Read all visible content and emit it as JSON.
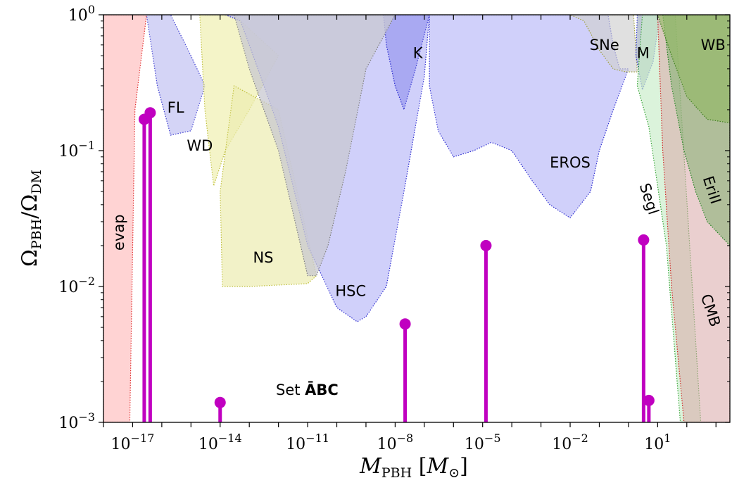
{
  "chart_data": {
    "type": "scatter",
    "x_scale": "log",
    "y_scale": "log",
    "x_range": [
      1e-18,
      3000.0
    ],
    "y_range": [
      0.001,
      1
    ],
    "xlabel": "M_PBH [M_⊙]",
    "ylabel": "Ω_PBH/Ω_DM",
    "x_ticks": [
      {
        "value": 1e-17,
        "base": "10",
        "exp": "−17"
      },
      {
        "value": 1e-14,
        "base": "10",
        "exp": "−14"
      },
      {
        "value": 1e-11,
        "base": "10",
        "exp": "−11"
      },
      {
        "value": 1e-08,
        "base": "10",
        "exp": "−8"
      },
      {
        "value": 1e-05,
        "base": "10",
        "exp": "−5"
      },
      {
        "value": 0.01,
        "base": "10",
        "exp": "−2"
      },
      {
        "value": 10,
        "base": "10",
        "exp": "1"
      }
    ],
    "y_ticks": [
      {
        "value": 0.001,
        "base": "10",
        "exp": "−3"
      },
      {
        "value": 0.01,
        "base": "10",
        "exp": "−2"
      },
      {
        "value": 0.1,
        "base": "10",
        "exp": "−1"
      },
      {
        "value": 1,
        "base": "10",
        "exp": "0"
      }
    ],
    "constraints": [
      {
        "name": "evap",
        "color": "#ffbcbc",
        "line": "#e03030",
        "opacity": 0.65,
        "boundary": [
          [
            1e-18,
            1
          ],
          [
            3e-17,
            1
          ],
          [
            1.2e-17,
            0.2
          ],
          [
            8e-18,
            0.001
          ],
          [
            1e-18,
            0.001
          ]
        ]
      },
      {
        "name": "FL",
        "color": "#b8b8f0",
        "line": "#4040d0",
        "opacity": 0.6,
        "boundary": [
          [
            3e-17,
            1
          ],
          [
            2e-16,
            1
          ],
          [
            1e-15,
            0.5
          ],
          [
            3e-15,
            0.3
          ],
          [
            1e-15,
            0.14
          ],
          [
            2e-16,
            0.13
          ],
          [
            7e-17,
            0.3
          ],
          [
            3e-17,
            1
          ]
        ]
      },
      {
        "name": "WD",
        "color": "#f0f0b0",
        "line": "#c0c040",
        "opacity": 0.7,
        "boundary": [
          [
            2e-15,
            1
          ],
          [
            3e-14,
            1
          ],
          [
            1e-12,
            0.5
          ],
          [
            1e-13,
            0.2
          ],
          [
            1.5e-14,
            0.1
          ],
          [
            6e-15,
            0.055
          ],
          [
            3e-15,
            0.2
          ],
          [
            2e-15,
            1
          ]
        ]
      },
      {
        "name": "NS",
        "color": "#ededb0",
        "line": "#c0c040",
        "opacity": 0.7,
        "boundary": [
          [
            1e-14,
            0.05
          ],
          [
            3e-14,
            0.3
          ],
          [
            1e-12,
            0.2
          ],
          [
            2e-11,
            0.012
          ],
          [
            1e-11,
            0.0105
          ],
          [
            1e-13,
            0.01
          ],
          [
            1.2e-14,
            0.01
          ],
          [
            1e-14,
            0.05
          ]
        ]
      },
      {
        "name": "HSC",
        "color": "#c0c0f8",
        "line": "#3030d0",
        "opacity": 0.75,
        "boundary": [
          [
            1.5e-14,
            1
          ],
          [
            5e-14,
            0.9
          ],
          [
            1e-13,
            0.6
          ],
          [
            1e-12,
            0.15
          ],
          [
            1e-11,
            0.02
          ],
          [
            1e-10,
            0.007
          ],
          [
            5e-10,
            0.0055
          ],
          [
            1e-09,
            0.006
          ],
          [
            5e-09,
            0.01
          ],
          [
            2e-08,
            0.05
          ],
          [
            1e-07,
            0.35
          ],
          [
            1.5e-07,
            1
          ],
          [
            1.5e-14,
            1
          ]
        ]
      },
      {
        "name": "K",
        "color": "#9090ec",
        "line": "#3030d0",
        "opacity": 0.6,
        "boundary": [
          [
            1e-08,
            1
          ],
          [
            1.5e-07,
            1
          ],
          [
            5e-08,
            0.4
          ],
          [
            2e-08,
            0.2
          ],
          [
            1e-08,
            0.3
          ],
          [
            5e-09,
            0.6
          ],
          [
            4e-09,
            1
          ],
          [
            1e-08,
            1
          ]
        ]
      },
      {
        "name": "EROS",
        "color": "#c0c0f8",
        "line": "#3030d0",
        "opacity": 0.75,
        "boundary": [
          [
            1.5e-07,
            1
          ],
          [
            0.2,
            1
          ],
          [
            0.3,
            0.6
          ],
          [
            0.5,
            0.4
          ],
          [
            1,
            0.4
          ],
          [
            0.3,
            0.2
          ],
          [
            0.1,
            0.1
          ],
          [
            0.05,
            0.05
          ],
          [
            0.01,
            0.032
          ],
          [
            0.002,
            0.04
          ],
          [
            0.0005,
            0.06
          ],
          [
            0.0001,
            0.1
          ],
          [
            2e-05,
            0.115
          ],
          [
            5e-06,
            0.1
          ],
          [
            1e-06,
            0.09
          ],
          [
            3e-07,
            0.14
          ],
          [
            1.5e-07,
            0.3
          ],
          [
            1.5e-07,
            1
          ]
        ]
      },
      {
        "name": "gray",
        "color": "#c8c8d0",
        "line": "#808080",
        "opacity": 0.75,
        "boundary": [
          [
            3e-15,
            1
          ],
          [
            1e-08,
            1
          ],
          [
            1e-09,
            0.4
          ],
          [
            2e-10,
            0.07
          ],
          [
            5e-11,
            0.02
          ],
          [
            2e-11,
            0.012
          ],
          [
            1e-11,
            0.012
          ],
          [
            1e-12,
            0.1
          ],
          [
            1e-13,
            0.4
          ],
          [
            3e-14,
            1
          ]
        ]
      },
      {
        "name": "SNe",
        "color": "#d0d0d0",
        "line": "#a0a040",
        "opacity": 0.65,
        "boundary": [
          [
            0.01,
            1
          ],
          [
            1.5,
            1
          ],
          [
            2,
            0.38
          ],
          [
            0.8,
            0.38
          ],
          [
            0.3,
            0.4
          ],
          [
            0.1,
            0.55
          ],
          [
            0.03,
            0.9
          ],
          [
            0.01,
            1
          ]
        ]
      },
      {
        "name": "M",
        "color": "#8a9ab0",
        "line": "#3030d0",
        "opacity": 0.55,
        "boundary": [
          [
            2,
            1
          ],
          [
            12,
            1
          ],
          [
            7,
            0.45
          ],
          [
            3,
            0.28
          ],
          [
            1.8,
            0.5
          ],
          [
            2,
            1
          ]
        ]
      },
      {
        "name": "Segl",
        "color": "#c8ecc8",
        "line": "#30a030",
        "opacity": 0.65,
        "boundary": [
          [
            3,
            1
          ],
          [
            40,
            1
          ],
          [
            300,
            0.001
          ],
          [
            60,
            0.001
          ],
          [
            20,
            0.02
          ],
          [
            5,
            0.15
          ],
          [
            2,
            0.3
          ],
          [
            3,
            1
          ]
        ]
      },
      {
        "name": "CMB",
        "color": "#d9a8a8",
        "line": "#d02020",
        "opacity": 0.55,
        "boundary": [
          [
            10,
            1
          ],
          [
            3000.0,
            1
          ],
          [
            3000.0,
            0.001
          ],
          [
            80,
            0.001
          ],
          [
            30,
            0.01
          ],
          [
            15,
            0.1
          ],
          [
            10,
            1
          ]
        ]
      },
      {
        "name": "EriII",
        "color": "#80b070",
        "line": "#208020",
        "opacity": 0.55,
        "boundary": [
          [
            15,
            1
          ],
          [
            3000.0,
            1
          ],
          [
            3000.0,
            0.02
          ],
          [
            500,
            0.03
          ],
          [
            200,
            0.05
          ],
          [
            80,
            0.1
          ],
          [
            30,
            0.3
          ],
          [
            15,
            1
          ]
        ]
      },
      {
        "name": "WB",
        "color": "#90b860",
        "line": "#408020",
        "opacity": 0.6,
        "boundary": [
          [
            10,
            1
          ],
          [
            3000.0,
            1
          ],
          [
            3000.0,
            0.16
          ],
          [
            500,
            0.17
          ],
          [
            100,
            0.25
          ],
          [
            30,
            0.5
          ],
          [
            10,
            1
          ]
        ]
      }
    ],
    "constraint_labels": [
      {
        "text": "evap",
        "x": 5e-18,
        "y": 0.025,
        "rotate": -90
      },
      {
        "text": "FL",
        "x": 3e-16,
        "y": 0.19,
        "rotate": 0
      },
      {
        "text": "WD",
        "x": 2e-15,
        "y": 0.1,
        "rotate": 0
      },
      {
        "text": "NS",
        "x": 3e-13,
        "y": 0.015,
        "rotate": 0
      },
      {
        "text": "HSC",
        "x": 3e-10,
        "y": 0.0085,
        "rotate": 0
      },
      {
        "text": "K",
        "x": 6e-08,
        "y": 0.48,
        "rotate": 0
      },
      {
        "text": "EROS",
        "x": 0.01,
        "y": 0.075,
        "rotate": 0
      },
      {
        "text": "SNe",
        "x": 0.15,
        "y": 0.55,
        "rotate": 0
      },
      {
        "text": "M",
        "x": 3.2,
        "y": 0.48,
        "rotate": 0
      },
      {
        "text": "WB",
        "x": 800,
        "y": 0.55,
        "rotate": 0
      },
      {
        "text": "Segl",
        "x": 3.5,
        "y": 0.043,
        "rotate": 72
      },
      {
        "text": "EriII",
        "x": 500,
        "y": 0.05,
        "rotate": 72
      },
      {
        "text": "CMB",
        "x": 450,
        "y": 0.0065,
        "rotate": 72
      }
    ],
    "pbh_points": [
      {
        "x": 2.5e-17,
        "y": 0.17
      },
      {
        "x": 4e-17,
        "y": 0.19
      },
      {
        "x": 1e-14,
        "y": 0.0014
      },
      {
        "x": 2.2e-08,
        "y": 0.0053
      },
      {
        "x": 1.3e-05,
        "y": 0.02
      },
      {
        "x": 3.3,
        "y": 0.022
      },
      {
        "x": 5,
        "y": 0.00145
      }
    ],
    "pbh_color": "#c000c0",
    "set_label": {
      "prefix": "Set ",
      "name": "ĀBC"
    }
  }
}
